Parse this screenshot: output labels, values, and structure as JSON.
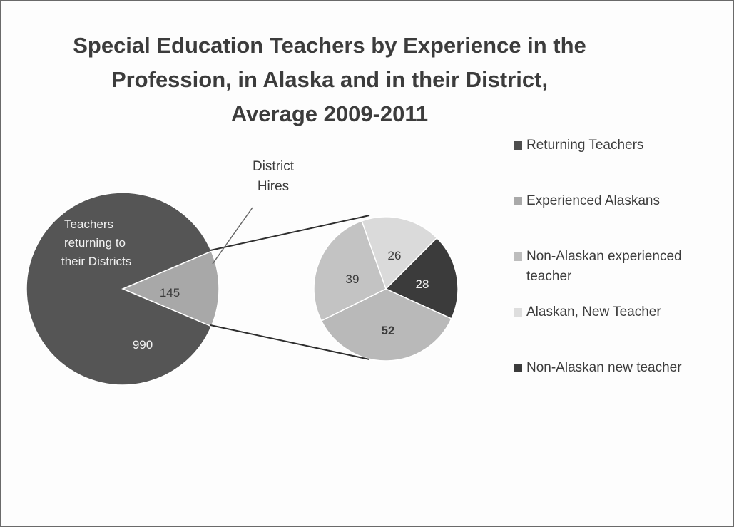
{
  "title": {
    "line1": "Special Education  Teachers by Experience in the",
    "line2": "Profession, in Alaska and in their District,",
    "line3": "Average 2009-2011"
  },
  "chart_data": {
    "type": "pie",
    "title": "Special Education Teachers by Experience in the Profession, in Alaska and in their District, Average 2009-2011",
    "main_pie": {
      "slices": [
        {
          "label": "Teachers returning to their Districts",
          "value": 990,
          "color": "#555555"
        },
        {
          "label": "District Hires",
          "value": 145,
          "color": "#a8a8a8"
        }
      ]
    },
    "sub_pie": {
      "slices": [
        {
          "legend": "Non-Alaskan new teacher",
          "value": 28,
          "color": "#3b3b3b"
        },
        {
          "legend": "Non-Alaskan experienced teacher",
          "value": 52,
          "color": "#b9b9b9"
        },
        {
          "legend": "Experienced Alaskans",
          "value": 39,
          "color": "#c3c3c3"
        },
        {
          "legend": "Alaskan, New Teacher",
          "value": 26,
          "color": "#dadada"
        }
      ]
    },
    "legend": [
      {
        "label": "Returning Teachers",
        "color": "#4d4d4d"
      },
      {
        "label": "Experienced Alaskans",
        "color": "#a9a9a9"
      },
      {
        "label": "Non-Alaskan experienced teacher",
        "color": "#bdbdbd"
      },
      {
        "label": "Alaskan, New Teacher",
        "color": "#dedede"
      },
      {
        "label": "Non-Alaskan new teacher",
        "color": "#3b3b3b"
      }
    ],
    "legend_position": "right"
  },
  "labels": {
    "returning_line1": "Teachers",
    "returning_line2": "returning to",
    "returning_line3": "their Districts",
    "returning_value": "990",
    "hires_value": "145",
    "callout_line1": "District",
    "callout_line2": "Hires",
    "sub_values": [
      "28",
      "52",
      "39",
      "26"
    ]
  }
}
